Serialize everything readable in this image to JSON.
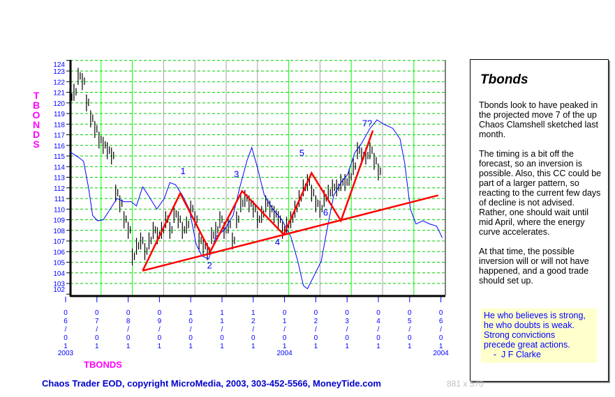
{
  "chart_data": {
    "type": "line",
    "title": "TBONDS",
    "ylabel": "TBONDS",
    "xlabel_series": "TBONDS",
    "ylim": [
      102,
      124
    ],
    "yticks": [
      102,
      103,
      104,
      105,
      106,
      107,
      108,
      109,
      110,
      111,
      112,
      113,
      114,
      115,
      116,
      117,
      118,
      119,
      120,
      121,
      122,
      123,
      124
    ],
    "x_unit": "months since 06/01/2003",
    "xlim": [
      0,
      12
    ],
    "xticks": [
      {
        "m": 0,
        "label": [
          "0",
          "6",
          "/",
          "0",
          "1"
        ]
      },
      {
        "m": 1,
        "label": [
          "0",
          "7",
          "/",
          "0",
          "1"
        ]
      },
      {
        "m": 2,
        "label": [
          "0",
          "8",
          "/",
          "0",
          "1"
        ]
      },
      {
        "m": 3,
        "label": [
          "0",
          "9",
          "/",
          "0",
          "1"
        ]
      },
      {
        "m": 4,
        "label": [
          "1",
          "0",
          "/",
          "0",
          "1"
        ]
      },
      {
        "m": 5,
        "label": [
          "1",
          "1",
          "/",
          "0",
          "1"
        ]
      },
      {
        "m": 6,
        "label": [
          "1",
          "2",
          "/",
          "0",
          "1"
        ]
      },
      {
        "m": 7,
        "label": [
          "0",
          "1",
          "/",
          "0",
          "1"
        ]
      },
      {
        "m": 8,
        "label": [
          "0",
          "2",
          "/",
          "0",
          "1"
        ]
      },
      {
        "m": 9,
        "label": [
          "0",
          "3",
          "/",
          "0",
          "1"
        ]
      },
      {
        "m": 10,
        "label": [
          "0",
          "4",
          "/",
          "0",
          "1"
        ]
      },
      {
        "m": 11,
        "label": [
          "0",
          "5",
          "/",
          "0",
          "1"
        ]
      },
      {
        "m": 12,
        "label": [
          "0",
          "6",
          "/",
          "0",
          "1"
        ]
      }
    ],
    "year_labels": [
      {
        "m": 0,
        "text": "2003"
      },
      {
        "m": 7,
        "text": "2004"
      },
      {
        "m": 12,
        "text": "2004"
      }
    ],
    "major_gridlines_months": [
      1,
      2,
      7,
      9,
      11
    ],
    "price_bars": {
      "start_month": 0,
      "step_month": 0.1333,
      "range": 1.6,
      "mid": [
        120.5,
        121,
        122.5,
        122,
        120,
        118.5,
        117.5,
        116.5,
        116,
        115.5,
        115,
        111.5,
        110.5,
        109,
        108,
        105.5,
        106.5,
        107,
        106,
        107,
        108,
        107.5,
        108,
        109,
        108,
        109.5,
        109,
        108,
        108.5,
        110,
        109,
        107,
        106.5,
        106,
        107.5,
        108,
        109,
        108,
        108.5,
        107,
        109,
        110.5,
        111,
        110.5,
        110,
        109,
        109.5,
        110.5,
        110,
        109.5,
        109,
        108,
        108.5,
        109,
        110,
        111,
        112,
        112.5,
        111.5,
        110.5,
        110,
        111,
        111.5,
        112,
        112,
        112.5,
        112.5,
        113,
        114,
        115.5,
        115,
        115,
        115.5,
        114.5,
        113.5
      ]
    },
    "energy_curve": [
      [
        0,
        115.4
      ],
      [
        0.27,
        114.9
      ],
      [
        0.44,
        114.5
      ],
      [
        0.6,
        112.0
      ],
      [
        0.73,
        109.4
      ],
      [
        0.89,
        108.9
      ],
      [
        1.07,
        109.0
      ],
      [
        1.29,
        110.0
      ],
      [
        1.51,
        111.0
      ],
      [
        1.73,
        110.7
      ],
      [
        1.96,
        110.7
      ],
      [
        2.13,
        110.3
      ],
      [
        2.33,
        112.1
      ],
      [
        2.51,
        111.3
      ],
      [
        2.78,
        110.0
      ],
      [
        3.02,
        111.0
      ],
      [
        3.2,
        112.5
      ],
      [
        3.38,
        112.3
      ],
      [
        3.6,
        111.3
      ],
      [
        3.82,
        110.0
      ],
      [
        4.04,
        106.7
      ],
      [
        4.22,
        105.6
      ],
      [
        4.44,
        105.3
      ],
      [
        4.67,
        107.4
      ],
      [
        4.93,
        108.0
      ],
      [
        5.22,
        109.4
      ],
      [
        5.44,
        112.1
      ],
      [
        5.67,
        114.6
      ],
      [
        5.82,
        115.8
      ],
      [
        6.0,
        113.9
      ],
      [
        6.22,
        111.3
      ],
      [
        6.49,
        110.0
      ],
      [
        6.78,
        109.0
      ],
      [
        7.07,
        107.4
      ],
      [
        7.29,
        105.1
      ],
      [
        7.47,
        102.8
      ],
      [
        7.6,
        102.5
      ],
      [
        7.82,
        103.8
      ],
      [
        8.04,
        105.1
      ],
      [
        8.22,
        108.0
      ],
      [
        8.44,
        111.3
      ],
      [
        8.67,
        112.5
      ],
      [
        8.89,
        113.3
      ],
      [
        9.11,
        115.3
      ],
      [
        9.33,
        116.2
      ],
      [
        9.6,
        117.6
      ],
      [
        9.82,
        118.4
      ],
      [
        10.04,
        118.0
      ],
      [
        10.33,
        117.6
      ],
      [
        10.56,
        116.6
      ],
      [
        10.71,
        114.3
      ],
      [
        10.89,
        110.0
      ],
      [
        11.07,
        108.6
      ],
      [
        11.29,
        108.9
      ],
      [
        11.51,
        108.6
      ],
      [
        11.73,
        108.4
      ],
      [
        11.91,
        107.3
      ]
    ],
    "clamshell": [
      [
        2.33,
        104.2
      ],
      [
        3.53,
        111.5
      ],
      [
        4.49,
        106.0
      ],
      [
        5.51,
        111.7
      ],
      [
        6.84,
        107.6
      ],
      [
        7.73,
        113.4
      ],
      [
        8.67,
        108.9
      ],
      [
        9.69,
        117.4
      ]
    ],
    "trendline": [
      [
        2.33,
        104.2
      ],
      [
        11.78,
        111.3
      ]
    ],
    "wave_labels": [
      {
        "text": "1",
        "m": 3.62,
        "p": 113.3
      },
      {
        "text": "2",
        "m": 4.47,
        "p": 104.4
      },
      {
        "text": "3",
        "m": 5.33,
        "p": 113.0
      },
      {
        "text": "4",
        "m": 6.64,
        "p": 106.6
      },
      {
        "text": "5",
        "m": 7.42,
        "p": 115.0
      },
      {
        "text": "6",
        "m": 8.18,
        "p": 109.4
      },
      {
        "text": "7?",
        "m": 9.51,
        "p": 117.8
      }
    ],
    "colors": {
      "bars": "#000000",
      "curve": "#0000ff",
      "pattern": "#ff0000",
      "grid_major": "#00ff00",
      "grid_minor": "#a0a0a0",
      "hgrid": "#00cc00",
      "axis_text": "#0000ff",
      "title": "#ff00ff"
    }
  },
  "panel": {
    "title": "Tbonds",
    "paragraphs": [
      "Tbonds look to have peaked in the projected move 7 of the up Chaos Clamshell sketched last month.",
      "The timing is a bit off the forecast, so an inversion is possible. Also, this CC could be part of a larger pattern, so reacting to the current few days of decline is not advised. Rather, one should wait until mid April, where the energy curve accelerates.",
      "At that time, the possible inversion will or will not have happened, and a good trade should set up."
    ],
    "quote_lines": [
      "He who believes is strong,",
      "he who doubts is weak.",
      "Strong convictions",
      "precede great actions.",
      "    -  J F Clarke"
    ]
  },
  "footer": {
    "text": "Chaos Trader EOD, copyright MicroMedia, 2003, 303-452-5566, MoneyTide.com",
    "dims": "881 x 570"
  }
}
